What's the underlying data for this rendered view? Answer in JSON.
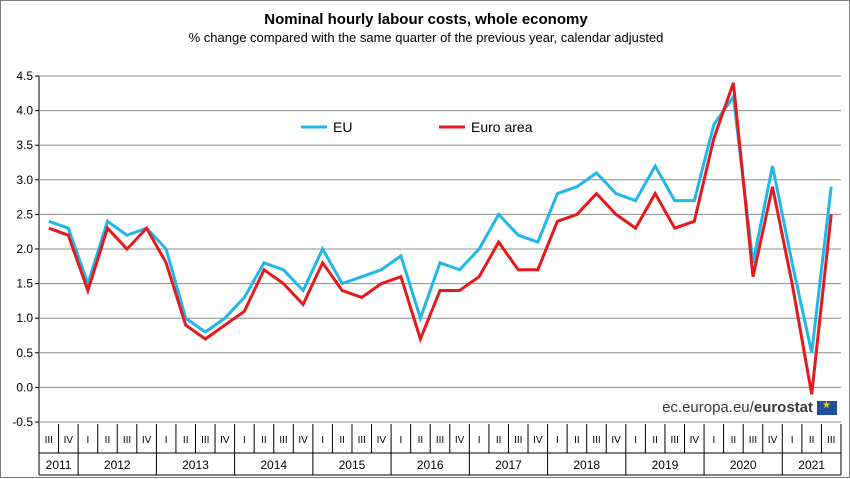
{
  "title": "Nominal hourly labour costs, whole economy",
  "subtitle": "% change compared with the same quarter of the previous  year, calendar adjusted",
  "source": {
    "site": "ec.europa.eu/",
    "brand": "eurostat"
  },
  "colors": {
    "eu": "#1fb6ea",
    "euro_area": "#e41a1c",
    "grid": "#8c8c8c"
  },
  "chart_data": {
    "type": "line",
    "y_ticks": [
      "-0.5",
      "0.0",
      "0.5",
      "1.0",
      "1.5",
      "2.0",
      "2.5",
      "3.0",
      "3.5",
      "4.0",
      "4.5"
    ],
    "ylim": [
      -0.5,
      4.5
    ],
    "grid": true,
    "legend_placement": "top-center",
    "quarters": [
      "III",
      "IV",
      "I",
      "II",
      "III",
      "IV",
      "I",
      "II",
      "III",
      "IV",
      "I",
      "II",
      "III",
      "IV",
      "I",
      "II",
      "III",
      "IV",
      "I",
      "II",
      "III",
      "IV",
      "I",
      "II",
      "III",
      "IV",
      "I",
      "II",
      "III",
      "IV",
      "I",
      "II",
      "III",
      "IV",
      "I",
      "II",
      "III",
      "IV",
      "I",
      "II",
      "III"
    ],
    "years": [
      {
        "label": "2011",
        "quarters": 2
      },
      {
        "label": "2012",
        "quarters": 4
      },
      {
        "label": "2013",
        "quarters": 4
      },
      {
        "label": "2014",
        "quarters": 4
      },
      {
        "label": "2015",
        "quarters": 4
      },
      {
        "label": "2016",
        "quarters": 4
      },
      {
        "label": "2017",
        "quarters": 4
      },
      {
        "label": "2018",
        "quarters": 4
      },
      {
        "label": "2019",
        "quarters": 4
      },
      {
        "label": "2020",
        "quarters": 4
      },
      {
        "label": "2021",
        "quarters": 3
      }
    ],
    "series": [
      {
        "name": "EU",
        "color": "#1fb6ea",
        "values": [
          2.4,
          2.3,
          1.5,
          2.4,
          2.2,
          2.3,
          2.0,
          1.0,
          0.8,
          1.0,
          1.3,
          1.8,
          1.7,
          1.4,
          2.0,
          1.5,
          1.6,
          1.7,
          1.9,
          1.0,
          1.8,
          1.7,
          2.0,
          2.5,
          2.2,
          2.1,
          2.8,
          2.9,
          3.1,
          2.8,
          2.7,
          3.2,
          2.7,
          2.7,
          3.8,
          4.2,
          1.8,
          3.2,
          1.8,
          0.5,
          2.9
        ]
      },
      {
        "name": "Euro area",
        "color": "#e41a1c",
        "values": [
          2.3,
          2.2,
          1.4,
          2.3,
          2.0,
          2.3,
          1.8,
          0.9,
          0.7,
          0.9,
          1.1,
          1.7,
          1.5,
          1.2,
          1.8,
          1.4,
          1.3,
          1.5,
          1.6,
          0.7,
          1.4,
          1.4,
          1.6,
          2.1,
          1.7,
          1.7,
          2.4,
          2.5,
          2.8,
          2.5,
          2.3,
          2.8,
          2.3,
          2.4,
          3.6,
          4.4,
          1.6,
          2.9,
          1.5,
          -0.1,
          2.5
        ]
      }
    ]
  }
}
